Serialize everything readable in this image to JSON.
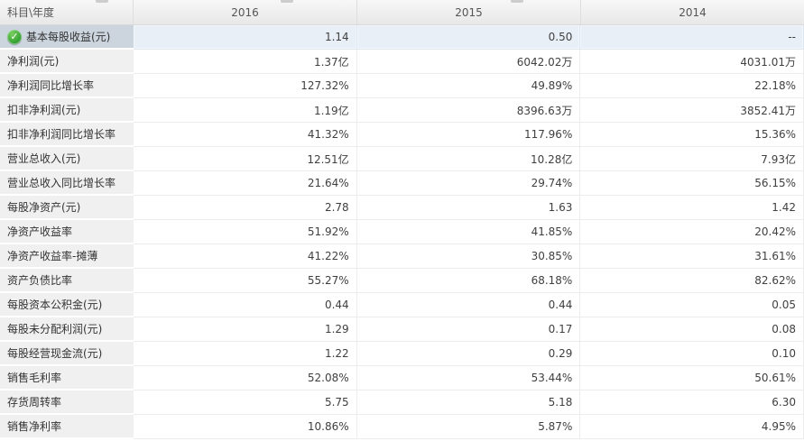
{
  "table": {
    "corner_label": "科目\\年度",
    "years": [
      "2016",
      "2015",
      "2014"
    ],
    "rows": [
      {
        "label": "基本每股收益(元)",
        "values": [
          "1.14",
          "0.50",
          "--"
        ],
        "selected": true,
        "icon": "check-circle"
      },
      {
        "label": "净利润(元)",
        "values": [
          "1.37亿",
          "6042.02万",
          "4031.01万"
        ]
      },
      {
        "label": "净利润同比增长率",
        "values": [
          "127.32%",
          "49.89%",
          "22.18%"
        ]
      },
      {
        "label": "扣非净利润(元)",
        "values": [
          "1.19亿",
          "8396.63万",
          "3852.41万"
        ]
      },
      {
        "label": "扣非净利润同比增长率",
        "values": [
          "41.32%",
          "117.96%",
          "15.36%"
        ]
      },
      {
        "label": "营业总收入(元)",
        "values": [
          "12.51亿",
          "10.28亿",
          "7.93亿"
        ]
      },
      {
        "label": "营业总收入同比增长率",
        "values": [
          "21.64%",
          "29.74%",
          "56.15%"
        ]
      },
      {
        "label": "每股净资产(元)",
        "values": [
          "2.78",
          "1.63",
          "1.42"
        ]
      },
      {
        "label": "净资产收益率",
        "values": [
          "51.92%",
          "41.85%",
          "20.42%"
        ]
      },
      {
        "label": "净资产收益率-摊薄",
        "values": [
          "41.22%",
          "30.85%",
          "31.61%"
        ]
      },
      {
        "label": "资产负债比率",
        "values": [
          "55.27%",
          "68.18%",
          "82.62%"
        ]
      },
      {
        "label": "每股资本公积金(元)",
        "values": [
          "0.44",
          "0.44",
          "0.05"
        ]
      },
      {
        "label": "每股未分配利润(元)",
        "values": [
          "1.29",
          "0.17",
          "0.08"
        ]
      },
      {
        "label": "每股经营现金流(元)",
        "values": [
          "1.22",
          "0.29",
          "0.10"
        ]
      },
      {
        "label": "销售毛利率",
        "values": [
          "52.08%",
          "53.44%",
          "50.61%"
        ]
      },
      {
        "label": "存货周转率",
        "values": [
          "5.75",
          "5.18",
          "6.30"
        ]
      },
      {
        "label": "销售净利率",
        "values": [
          "10.86%",
          "5.87%",
          "4.95%"
        ]
      }
    ]
  },
  "icons": {
    "check-circle": "✓"
  },
  "colors": {
    "check_green": "#3aa02c",
    "label_cell_bg": "#f0f0f0",
    "selected_label_bg": "#ccd5de",
    "selected_value_bg": "#e9eff7",
    "header_bg": "#eeeeee",
    "grid_line": "#ececec"
  }
}
